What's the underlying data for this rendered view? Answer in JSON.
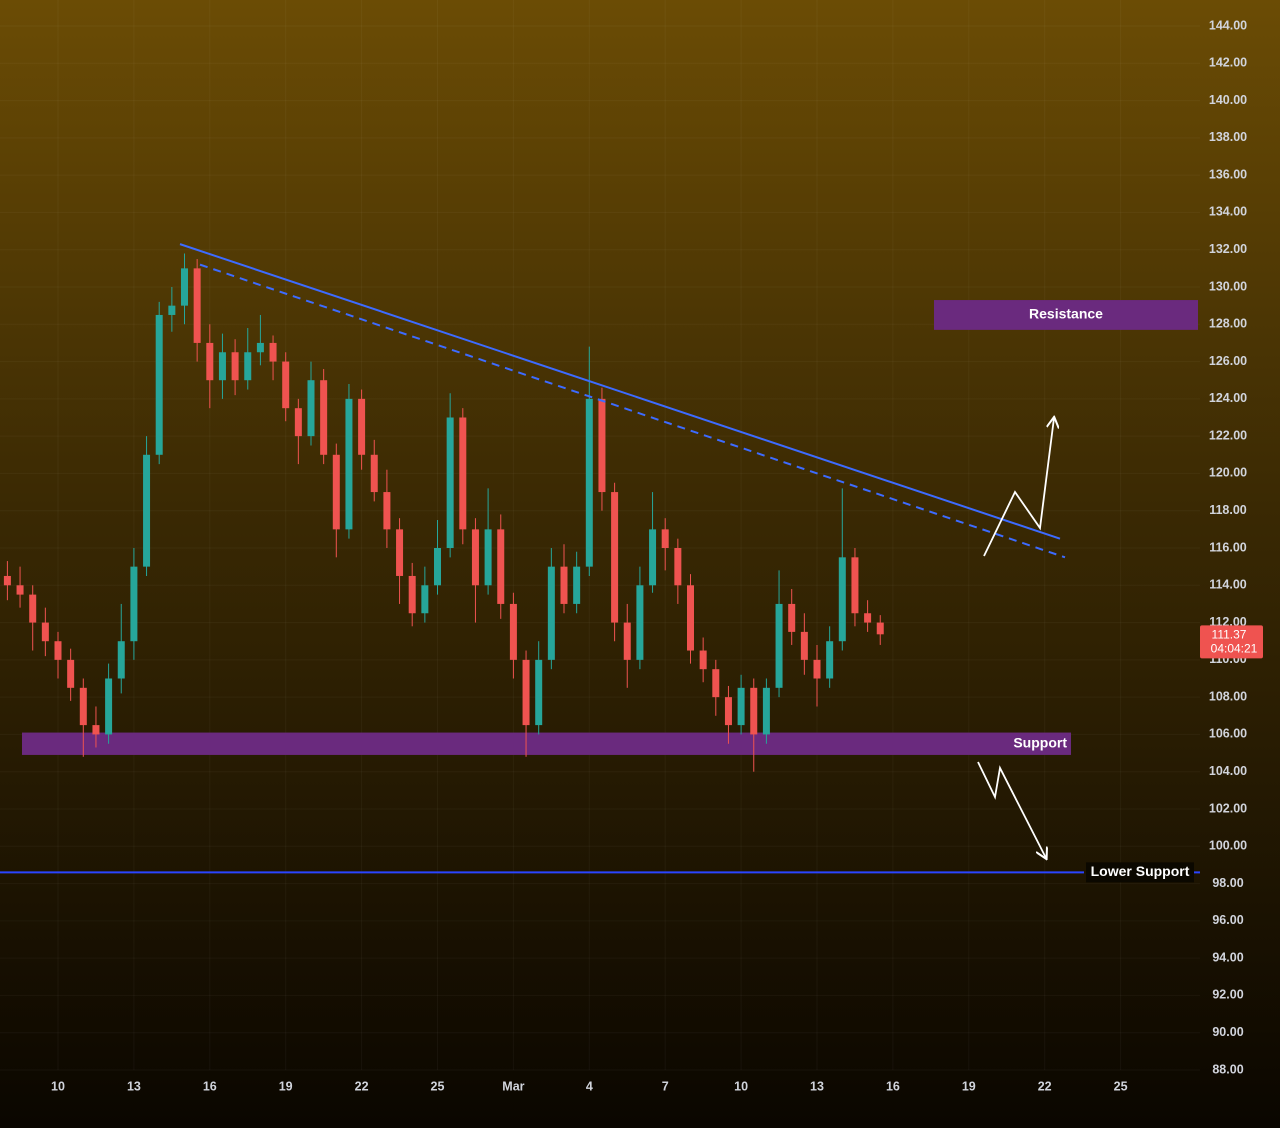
{
  "chart_data": {
    "type": "candlestick",
    "categories": [
      null,
      null,
      null,
      null,
      "10",
      null,
      null,
      null,
      null,
      null,
      "13",
      null,
      null,
      null,
      null,
      null,
      "16",
      null,
      null,
      null,
      null,
      null,
      "19",
      null,
      null,
      null,
      null,
      null,
      "22",
      null,
      null,
      null,
      null,
      null,
      "25",
      null,
      null,
      null,
      null,
      null,
      "Mar",
      null,
      null,
      null,
      null,
      null,
      "4",
      null,
      null,
      null,
      null,
      null,
      "7",
      null,
      null,
      null,
      null,
      null,
      "10",
      null,
      null,
      null,
      null,
      null,
      "13",
      null,
      null,
      null,
      null,
      null,
      "16",
      null,
      null,
      null,
      null,
      null,
      "19",
      null,
      null,
      null,
      null,
      null,
      "22",
      null,
      null,
      null,
      null,
      null,
      "25",
      null,
      null,
      null
    ],
    "open": [
      114.5,
      114,
      113.5,
      112,
      111,
      110,
      108.5,
      106.5,
      106,
      109,
      111,
      115,
      121,
      128.5,
      129,
      131,
      127,
      125,
      126.5,
      125,
      126.5,
      127,
      126,
      123.5,
      122,
      125,
      121,
      117,
      124,
      121,
      119,
      117,
      114.5,
      112.5,
      114,
      116,
      123,
      117,
      114,
      117,
      113,
      110,
      106.5,
      110,
      115,
      113,
      115,
      124,
      119,
      112,
      110,
      114,
      117,
      116,
      114,
      110.5,
      109.5,
      108,
      106.5,
      108.5,
      106,
      108.5,
      113,
      111.5,
      110,
      109,
      111,
      115.5,
      112.5,
      112,
      null,
      null,
      null,
      null,
      null,
      null,
      null,
      null,
      null,
      null,
      null,
      null,
      null,
      null,
      null,
      null,
      null,
      null,
      null,
      null,
      null,
      null
    ],
    "high": [
      115.3,
      115,
      114,
      112.8,
      111.5,
      110.6,
      109,
      107.5,
      109.8,
      113,
      116,
      122,
      129.2,
      130,
      131.8,
      131.5,
      128,
      127.5,
      127.2,
      127.8,
      128.5,
      127.4,
      126.5,
      124,
      126,
      125.6,
      121.6,
      124.8,
      124.5,
      121.8,
      120.2,
      117.6,
      115.2,
      115,
      117.5,
      124.3,
      123.5,
      117.6,
      119.2,
      117.8,
      113.6,
      110.5,
      111,
      116,
      116.2,
      115.8,
      126.8,
      124.6,
      119.5,
      113,
      115,
      119,
      117.6,
      116.5,
      114.6,
      111.2,
      110,
      108.6,
      109.2,
      109,
      109,
      114.8,
      113.8,
      112.5,
      110.8,
      111.8,
      119.2,
      116,
      113.2,
      112.4,
      null,
      null,
      null,
      null,
      null,
      null,
      null,
      null,
      null,
      null,
      null,
      null,
      null,
      null,
      null,
      null,
      null,
      null,
      null,
      null,
      null,
      null
    ],
    "low": [
      113.2,
      112.8,
      110.5,
      110.2,
      109,
      107.8,
      104.8,
      105.3,
      105.5,
      108.2,
      110,
      114.5,
      120.5,
      127.6,
      128,
      126,
      123.5,
      124,
      124.2,
      124.5,
      125.8,
      125,
      122.8,
      120.5,
      121.5,
      120.5,
      115.5,
      116.5,
      120.2,
      118.5,
      116,
      113,
      111.8,
      112,
      113.5,
      115.5,
      116.2,
      112,
      113.5,
      112.2,
      109,
      104.8,
      106,
      109.5,
      112.5,
      112.5,
      114.5,
      118,
      111,
      108.5,
      109.5,
      113.6,
      114.8,
      113,
      109.8,
      108.8,
      107,
      105.5,
      106,
      104,
      105.5,
      108,
      110.8,
      109.2,
      107.5,
      108.5,
      110.5,
      111.8,
      111.5,
      110.8,
      null,
      null,
      null,
      null,
      null,
      null,
      null,
      null,
      null,
      null,
      null,
      null,
      null,
      null,
      null,
      null,
      null,
      null,
      null,
      null,
      null,
      null
    ],
    "close": [
      114,
      113.5,
      112,
      111,
      110,
      108.5,
      106.5,
      106,
      109,
      111,
      115,
      121,
      128.5,
      129,
      131,
      127,
      125,
      126.5,
      125,
      126.5,
      127,
      126,
      123.5,
      122,
      125,
      121,
      117,
      124,
      121,
      119,
      117,
      114.5,
      112.5,
      114,
      116,
      123,
      117,
      114,
      117,
      113,
      110,
      106.5,
      110,
      115,
      113,
      115,
      124,
      119,
      112,
      110,
      114,
      117,
      116,
      114,
      110.5,
      109.5,
      108,
      106.5,
      108.5,
      106,
      108.5,
      113,
      111.5,
      110,
      109,
      111,
      115.5,
      112.5,
      112,
      111.37,
      null,
      null,
      null,
      null,
      null,
      null,
      null,
      null,
      null,
      null,
      null,
      null,
      null,
      null,
      null,
      null,
      null,
      null,
      null,
      null,
      null,
      null
    ],
    "up_color": "#26a69a",
    "down_color": "#ef5350",
    "countdown": "04:04:21",
    "ylim": [
      88,
      144
    ],
    "yticks": [
      {
        "value": 88,
        "label": "88.00"
      },
      {
        "value": 90,
        "label": "90.00"
      },
      {
        "value": 92,
        "label": "92.00"
      },
      {
        "value": 94,
        "label": "94.00"
      },
      {
        "value": 96,
        "label": "96.00"
      },
      {
        "value": 98,
        "label": "98.00"
      },
      {
        "value": 100,
        "label": "100.00"
      },
      {
        "value": 102,
        "label": "102.00"
      },
      {
        "value": 104,
        "label": "104.00"
      },
      {
        "value": 106,
        "label": "106.00"
      },
      {
        "value": 108,
        "label": "108.00"
      },
      {
        "value": 110,
        "label": "110.00"
      },
      {
        "value": 112,
        "label": "112.00"
      },
      {
        "value": 114,
        "label": "114.00"
      },
      {
        "value": 116,
        "label": "116.00"
      },
      {
        "value": 118,
        "label": "118.00"
      },
      {
        "value": 120,
        "label": "120.00"
      },
      {
        "value": 122,
        "label": "122.00"
      },
      {
        "value": 124,
        "label": "124.00"
      },
      {
        "value": 126,
        "label": "126.00"
      },
      {
        "value": 128,
        "label": "128.00"
      },
      {
        "value": 130,
        "label": "130.00"
      },
      {
        "value": 132,
        "label": "132.00"
      },
      {
        "value": 134,
        "label": "134.00"
      },
      {
        "value": 136,
        "label": "136.00"
      },
      {
        "value": 138,
        "label": "138.00"
      },
      {
        "value": 140,
        "label": "140.00"
      },
      {
        "value": 142,
        "label": "142.00"
      },
      {
        "value": 144,
        "label": "144.00"
      }
    ],
    "grid": true,
    "zones": [
      {
        "label": "Resistance",
        "low": 127.7,
        "high": 129.3,
        "color": "#6a2a7e"
      },
      {
        "label": "Support",
        "low": 104.9,
        "high": 106.1,
        "color": "#6a2a7e"
      }
    ],
    "levels": [
      {
        "label": "Lower Support",
        "value": 98.6,
        "color": "#2a44ff"
      }
    ],
    "trendlines": [
      {
        "start": 132.3,
        "end": 116.5,
        "color": "#3d6bff",
        "dashed": false
      },
      {
        "start": 131.2,
        "end": 115.5,
        "color": "#3d6bff",
        "dashed": true
      }
    ]
  }
}
